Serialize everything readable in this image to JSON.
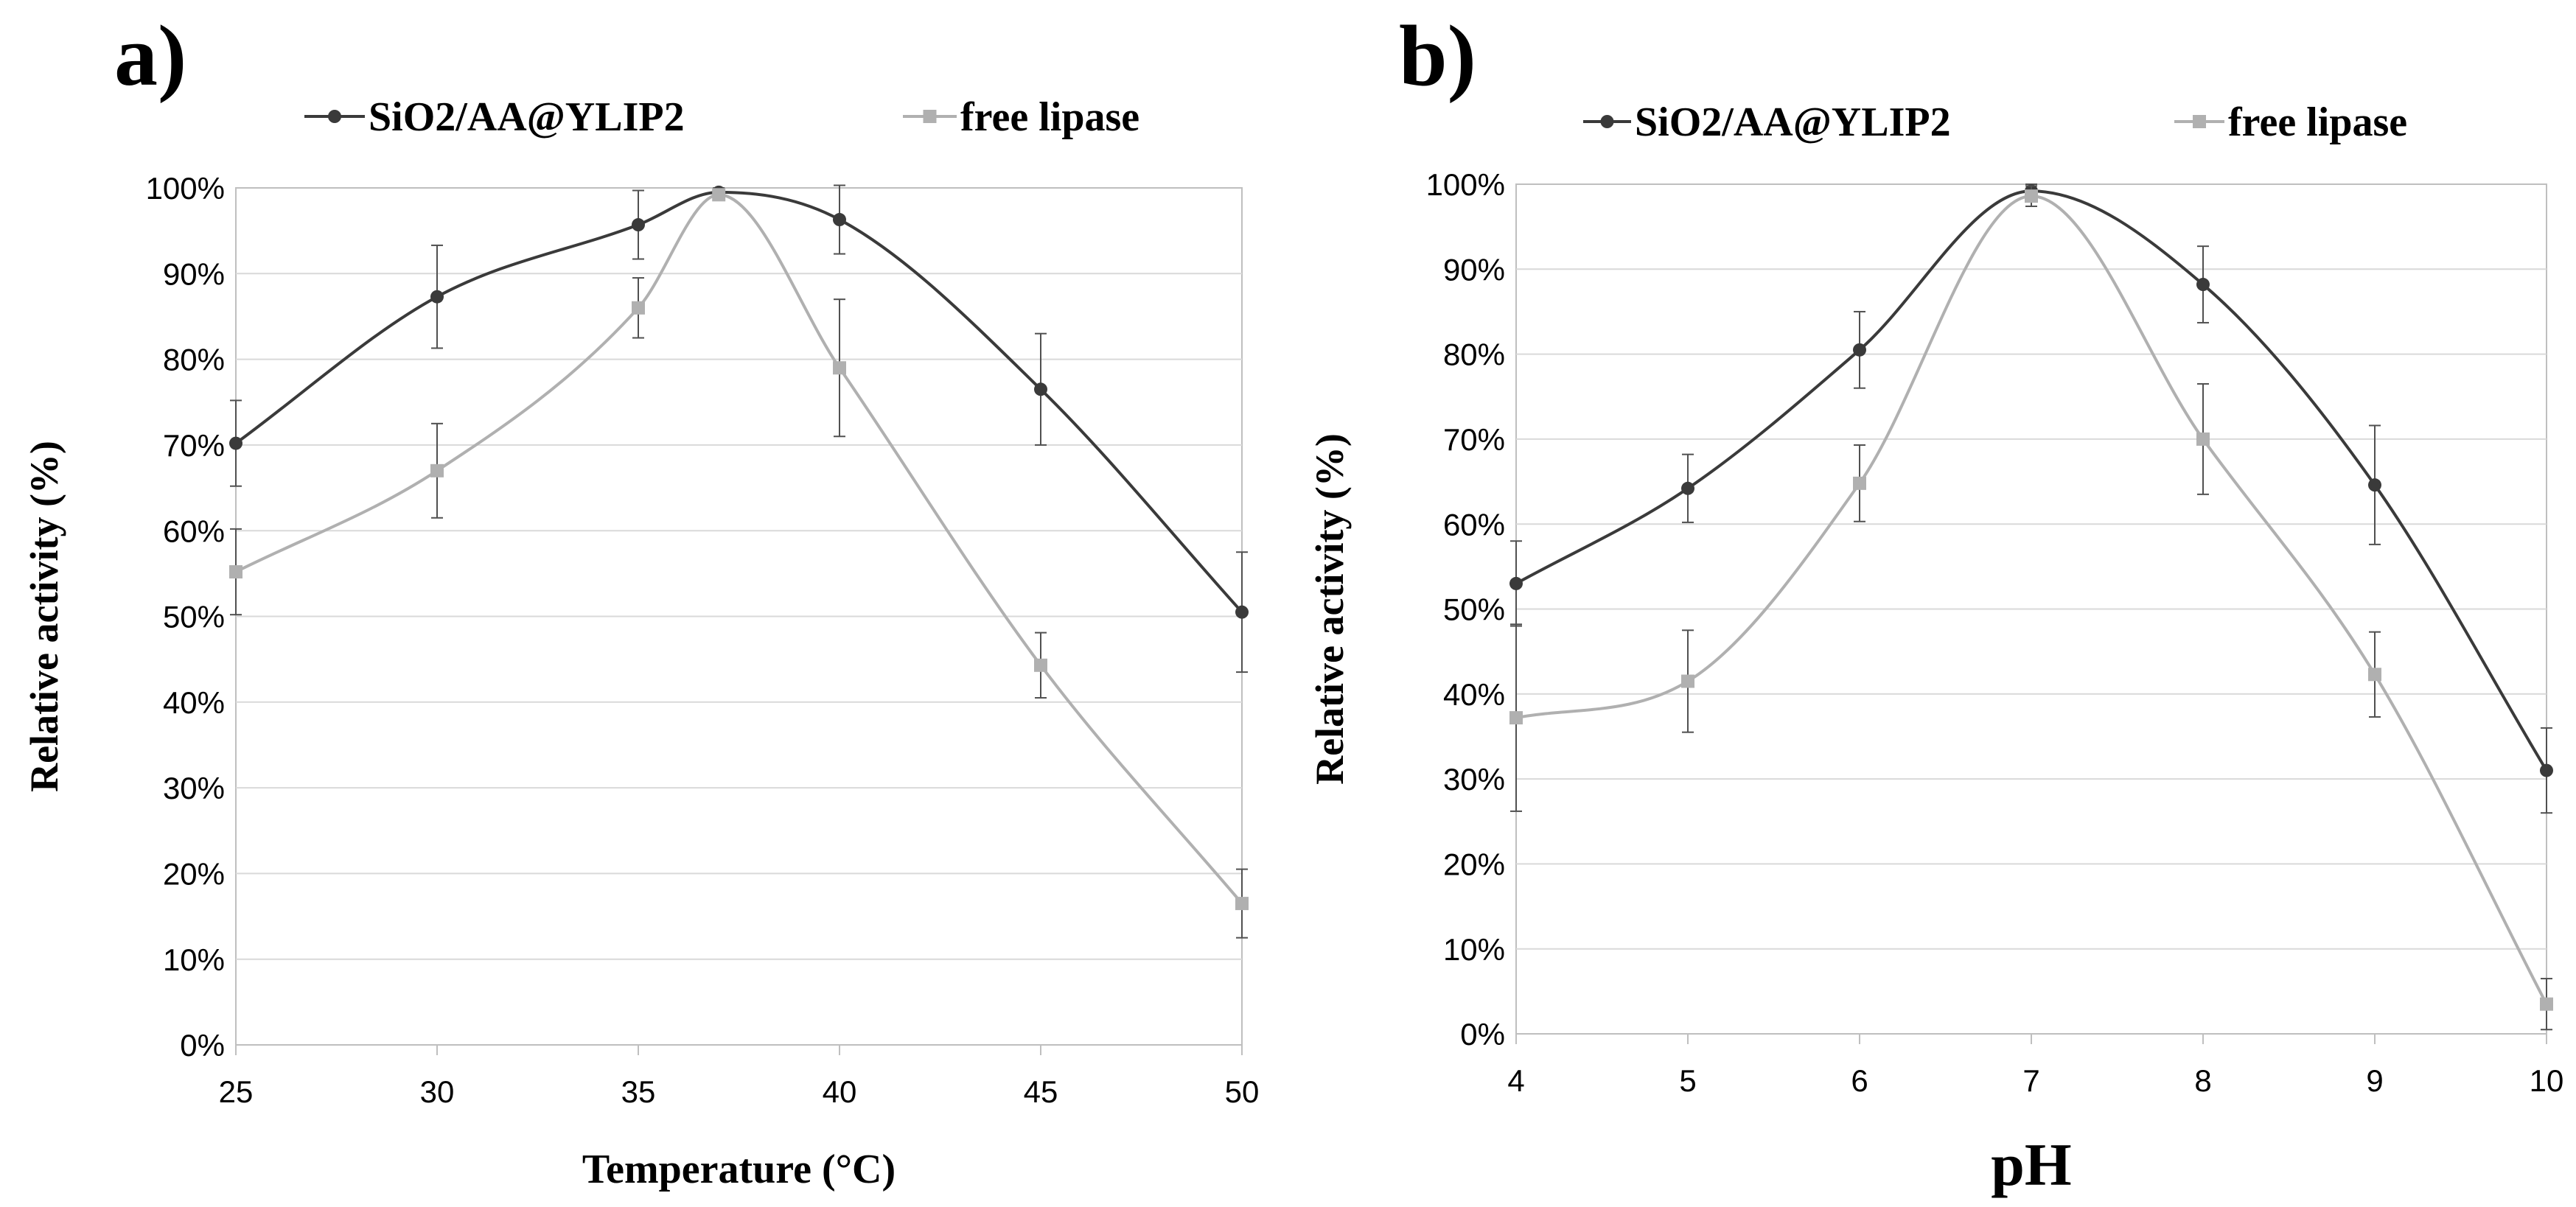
{
  "colors": {
    "dark": "#3a3a3a",
    "light": "#b0b0b0",
    "grid": "#d9d9d9",
    "axis": "#bfbfbf",
    "text": "#000000"
  },
  "chart_data": [
    {
      "panel_label": "a)",
      "type": "line",
      "x": [
        25,
        30,
        35,
        37,
        40,
        45,
        50
      ],
      "xticks": [
        25,
        30,
        35,
        40,
        45,
        50
      ],
      "xlim": [
        25,
        50
      ],
      "ylim": [
        0,
        100
      ],
      "ytick_labels": [
        "0%",
        "10%",
        "20%",
        "30%",
        "40%",
        "50%",
        "60%",
        "70%",
        "80%",
        "90%",
        "100%"
      ],
      "xlabel": "Temperature (°C)",
      "ylabel": "Relative activity (%)",
      "legend": "top",
      "grid": true,
      "series": [
        {
          "name": "SiO2/AA@YLIP2",
          "color": "#3a3a3a",
          "marker": "circle",
          "values": [
            70.2,
            87.3,
            95.7,
            99.5,
            96.3,
            76.5,
            50.5
          ],
          "errors": [
            5,
            6,
            4,
            0.5,
            4,
            6.5,
            7
          ]
        },
        {
          "name": "free lipase",
          "color": "#b0b0b0",
          "marker": "square",
          "values": [
            55.2,
            67.0,
            86.0,
            99.2,
            79.0,
            44.3,
            16.5
          ],
          "errors": [
            5,
            5.5,
            3.5,
            0.5,
            8,
            3.8,
            4
          ]
        }
      ]
    },
    {
      "panel_label": "b)",
      "type": "line",
      "x": [
        4,
        5,
        6,
        7,
        8,
        9,
        10
      ],
      "xticks": [
        4,
        5,
        6,
        7,
        8,
        9,
        10
      ],
      "xlim": [
        4,
        10
      ],
      "ylim": [
        0,
        100
      ],
      "ytick_labels": [
        "0%",
        "10%",
        "20%",
        "30%",
        "40%",
        "50%",
        "60%",
        "70%",
        "80%",
        "90%",
        "100%"
      ],
      "xlabel": "pH",
      "ylabel": "Relative activity (%)",
      "legend": "top",
      "grid": true,
      "series": [
        {
          "name": "SiO2/AA@YLIP2",
          "color": "#3a3a3a",
          "marker": "circle",
          "values": [
            53.0,
            64.2,
            80.5,
            99.2,
            88.2,
            64.6,
            31.0
          ],
          "errors": [
            5,
            4,
            4.5,
            0.8,
            4.5,
            7,
            5
          ]
        },
        {
          "name": "free lipase",
          "color": "#b0b0b0",
          "marker": "square",
          "values": [
            37.2,
            41.5,
            64.8,
            98.6,
            70.0,
            42.3,
            3.5
          ],
          "errors": [
            11,
            6,
            4.5,
            1.2,
            6.5,
            5,
            3
          ]
        }
      ]
    }
  ]
}
